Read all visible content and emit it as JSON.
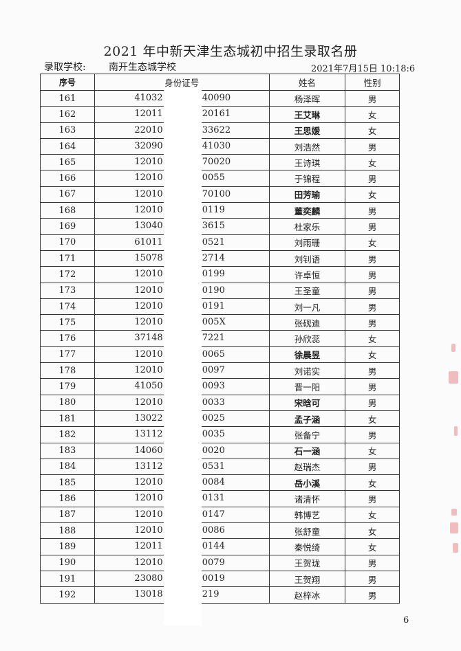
{
  "title": "2021 年中新天津生态城初中招生录取名册",
  "school_label": "录取学校:",
  "school_name": "南开生态城学校",
  "datetime": "2021年7月15日  10:18:6",
  "columns": [
    "序号",
    "身份证号",
    "姓名",
    "性别"
  ],
  "rows": [
    {
      "seq": "161",
      "id_left": "41032",
      "id_right": "40090",
      "name": "杨泽晖",
      "gender": "男"
    },
    {
      "seq": "162",
      "id_left": "12011",
      "id_right": "20161",
      "name": "王艾琳",
      "gender": "女"
    },
    {
      "seq": "163",
      "id_left": "22010",
      "id_right": "33622",
      "name": "王思媛",
      "gender": "女"
    },
    {
      "seq": "164",
      "id_left": "32090",
      "id_right": "41030",
      "name": "刘浩然",
      "gender": "男"
    },
    {
      "seq": "165",
      "id_left": "12010",
      "id_right": "70020",
      "name": "王诗琪",
      "gender": "女"
    },
    {
      "seq": "166",
      "id_left": "12010",
      "id_right": "0055",
      "name": "于锦程",
      "gender": "男"
    },
    {
      "seq": "167",
      "id_left": "12010",
      "id_right": "70100",
      "name": "田芳瑜",
      "gender": "女"
    },
    {
      "seq": "168",
      "id_left": "12010",
      "id_right": "0119",
      "name": "董奕麟",
      "gender": "男"
    },
    {
      "seq": "169",
      "id_left": "13040",
      "id_right": "3615",
      "name": "杜家乐",
      "gender": "男"
    },
    {
      "seq": "170",
      "id_left": "61011",
      "id_right": "0521",
      "name": "刘雨珊",
      "gender": "女"
    },
    {
      "seq": "171",
      "id_left": "15078",
      "id_right": "2714",
      "name": "刘钊语",
      "gender": "男"
    },
    {
      "seq": "172",
      "id_left": "12010",
      "id_right": "0199",
      "name": "许卓恒",
      "gender": "男"
    },
    {
      "seq": "173",
      "id_left": "12010",
      "id_right": "0190",
      "name": "王圣童",
      "gender": "男"
    },
    {
      "seq": "174",
      "id_left": "12010",
      "id_right": "0191",
      "name": "刘一凡",
      "gender": "男"
    },
    {
      "seq": "175",
      "id_left": "12010",
      "id_right": "005X",
      "name": "张砚迪",
      "gender": "男"
    },
    {
      "seq": "176",
      "id_left": "37148",
      "id_right": "7221",
      "name": "孙欣蕊",
      "gender": "女"
    },
    {
      "seq": "177",
      "id_left": "12010",
      "id_right": "0065",
      "name": "徐晨昱",
      "gender": "女"
    },
    {
      "seq": "178",
      "id_left": "12010",
      "id_right": "0097",
      "name": "刘诺实",
      "gender": "男"
    },
    {
      "seq": "179",
      "id_left": "41050",
      "id_right": "0093",
      "name": "晋一阳",
      "gender": "男"
    },
    {
      "seq": "180",
      "id_left": "12010",
      "id_right": "0033",
      "name": "宋晗可",
      "gender": "男"
    },
    {
      "seq": "181",
      "id_left": "13022",
      "id_right": "0025",
      "name": "孟子涵",
      "gender": "女"
    },
    {
      "seq": "182",
      "id_left": "13112",
      "id_right": "0035",
      "name": "张备宁",
      "gender": "男"
    },
    {
      "seq": "183",
      "id_left": "14060",
      "id_right": "0020",
      "name": "石一涵",
      "gender": "女"
    },
    {
      "seq": "184",
      "id_left": "13112",
      "id_right": "0531",
      "name": "赵瑞杰",
      "gender": "男"
    },
    {
      "seq": "185",
      "id_left": "12010",
      "id_right": "0084",
      "name": "岳小溪",
      "gender": "女"
    },
    {
      "seq": "186",
      "id_left": "12010",
      "id_right": "0131",
      "name": "诸清怀",
      "gender": "男"
    },
    {
      "seq": "187",
      "id_left": "12010",
      "id_right": "0147",
      "name": "韩博艺",
      "gender": "女"
    },
    {
      "seq": "188",
      "id_left": "12010",
      "id_right": "0086",
      "name": "张舒童",
      "gender": "女"
    },
    {
      "seq": "189",
      "id_left": "12011",
      "id_right": "0144",
      "name": "秦悦绮",
      "gender": "女"
    },
    {
      "seq": "190",
      "id_left": "12010",
      "id_right": "0079",
      "name": "王贺珑",
      "gender": "男"
    },
    {
      "seq": "191",
      "id_left": "23080",
      "id_right": "0019",
      "name": "王贺翔",
      "gender": "男"
    },
    {
      "seq": "192",
      "id_left": "13018",
      "id_right": "219",
      "name": "赵梓冰",
      "gender": "男"
    }
  ],
  "page_number": "6",
  "colors": {
    "text": "#222222",
    "stamp": "#e58a8a",
    "background": "#fbfbfb"
  }
}
